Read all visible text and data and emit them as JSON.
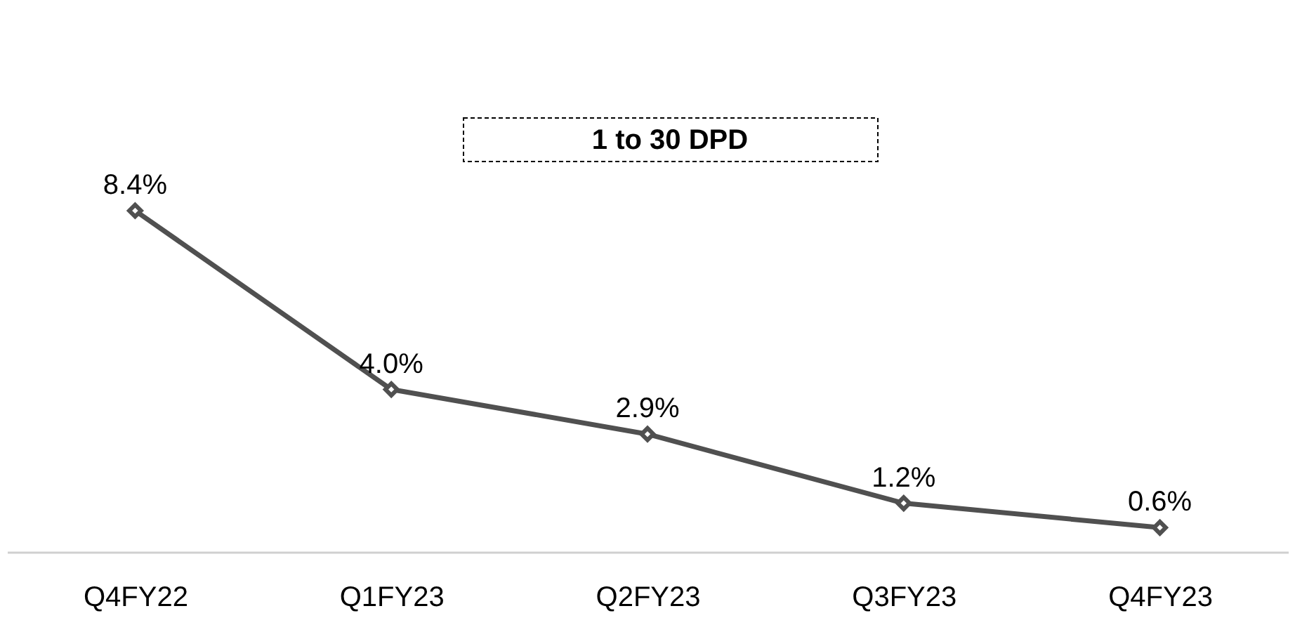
{
  "chart_data": {
    "type": "line",
    "title": "1 to 30 DPD",
    "categories": [
      "Q4FY22",
      "Q1FY23",
      "Q2FY23",
      "Q3FY23",
      "Q4FY23"
    ],
    "series": [
      {
        "color": "#505050",
        "values": [
          8.4,
          4.0,
          2.9,
          1.2,
          0.6
        ],
        "value_labels": [
          "8.4%",
          "4.0%",
          "2.9%",
          "1.2%",
          "0.6%"
        ]
      }
    ],
    "tick_labels": "x",
    "marker": "diamond",
    "line_style": "solid",
    "grid": false,
    "legend": false
  }
}
